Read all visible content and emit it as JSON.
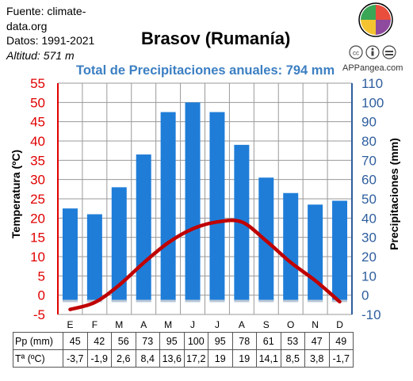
{
  "source": {
    "line1": "Fuente: climate-",
    "line2": "data.org",
    "line3": "Datos: 1991-2021",
    "line4": "Altitud: 571 m"
  },
  "brand": "APPangea.com",
  "colors": {
    "bars": "#1f7dd8",
    "temp_line": "#c00000",
    "left_axis": "#e00000",
    "right_axis": "#2f5e9e",
    "subtitle": "#3c7fc2"
  },
  "chart_data": {
    "type": "bar",
    "title": "Brasov (Rumanía)",
    "subtitle": "Total de Precipitaciones anuales: 794 mm",
    "categories": [
      "E",
      "F",
      "M",
      "A",
      "M",
      "J",
      "J",
      "A",
      "S",
      "O",
      "N",
      "D"
    ],
    "series": [
      {
        "name": "Pp (mm)",
        "type": "bar",
        "axis": "right",
        "values": [
          45,
          42,
          56,
          73,
          95,
          100,
          95,
          78,
          61,
          53,
          47,
          49
        ]
      },
      {
        "name": "Tª (ºC)",
        "type": "line",
        "axis": "left",
        "values": [
          -3.7,
          -1.9,
          2.6,
          8.4,
          13.6,
          17.2,
          19,
          19,
          14.1,
          8.5,
          3.8,
          -1.7
        ]
      }
    ],
    "left_axis": {
      "label": "Temperatura (ºC)",
      "range": [
        -5,
        55
      ],
      "ticks": [
        -5,
        0,
        5,
        10,
        15,
        20,
        25,
        30,
        35,
        40,
        45,
        50,
        55
      ]
    },
    "right_axis": {
      "label": "Precipitaciones (mm)",
      "range": [
        -10,
        110
      ],
      "ticks": [
        -10,
        0,
        10,
        20,
        30,
        40,
        50,
        60,
        70,
        80,
        90,
        100,
        110
      ]
    },
    "grid": true
  },
  "table": {
    "rows": [
      {
        "header": "Pp (mm)",
        "cells": [
          "45",
          "42",
          "56",
          "73",
          "95",
          "100",
          "95",
          "78",
          "61",
          "53",
          "47",
          "49"
        ]
      },
      {
        "header": "Tª (ºC)",
        "cells": [
          "-3,7",
          "-1,9",
          "2,6",
          "8,4",
          "13,6",
          "17,2",
          "19",
          "19",
          "14,1",
          "8,5",
          "3,8",
          "-1,7"
        ]
      }
    ]
  }
}
